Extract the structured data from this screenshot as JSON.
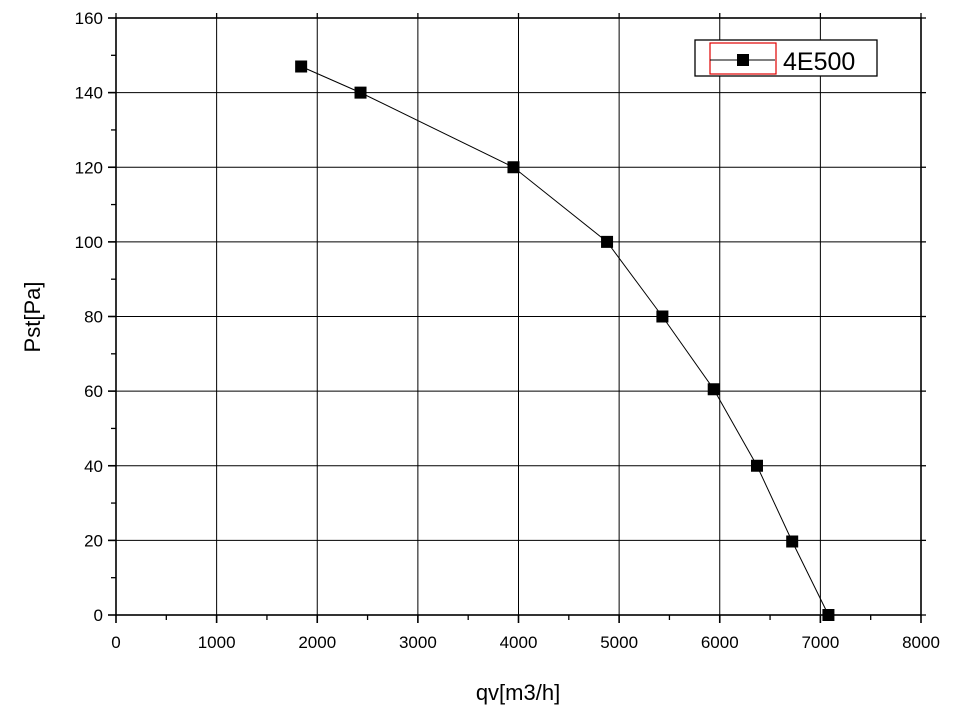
{
  "chart_data": {
    "type": "line",
    "title": "",
    "xlabel": "qv[m3/h]",
    "ylabel": "Pst[Pa]",
    "xlim": [
      0,
      8000
    ],
    "ylim": [
      0,
      160
    ],
    "xticks": [
      0,
      1000,
      2000,
      3000,
      4000,
      5000,
      6000,
      7000,
      8000
    ],
    "yticks": [
      0,
      20,
      40,
      60,
      80,
      100,
      120,
      140,
      160
    ],
    "grid": true,
    "legend_position": "top-right",
    "series": [
      {
        "name": "4E500",
        "color": "#000000",
        "marker": "square",
        "x": [
          1840,
          2430,
          3950,
          4880,
          5430,
          5940,
          6370,
          6720,
          7080
        ],
        "y": [
          147,
          140,
          120,
          100,
          80,
          60.5,
          40,
          19.7,
          0
        ]
      }
    ]
  }
}
